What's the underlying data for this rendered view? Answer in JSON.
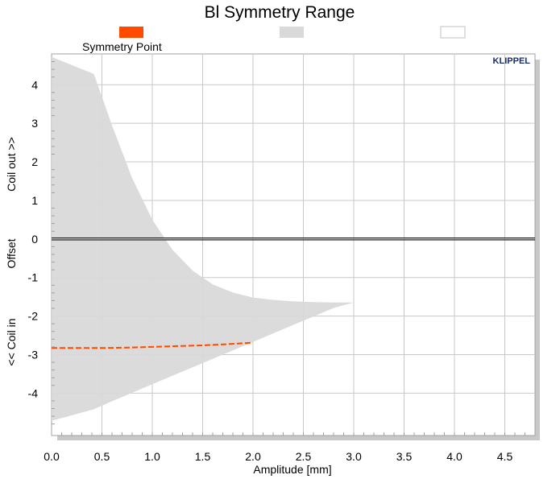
{
  "chart_data": {
    "type": "area",
    "title": "Bl Symmetry Range",
    "xlabel": "Amplitude [mm]",
    "ylabel_parts": [
      "Coil out >>",
      "Offset",
      "<< Coil in"
    ],
    "brand": "KLIPPEL",
    "xlim": [
      0,
      4.8
    ],
    "ylim": [
      -5.1,
      4.8
    ],
    "xticks": [
      0.0,
      0.5,
      1.0,
      1.5,
      2.0,
      2.5,
      3.0,
      3.5,
      4.0,
      4.5
    ],
    "xtick_labels": [
      "0.0",
      "0.5",
      "1.0",
      "1.5",
      "2.0",
      "2.5",
      "3.0",
      "3.5",
      "4.0",
      "4.5"
    ],
    "yticks": [
      4,
      3,
      2,
      1,
      0,
      -1,
      -2,
      -3,
      -4
    ],
    "ytick_labels": [
      "4",
      "3",
      "2",
      "1",
      "0",
      "-1",
      "-2",
      "-3",
      "-4"
    ],
    "grid": true,
    "legend": [
      {
        "label": "Symmetry Point",
        "color": "#ff4a00"
      },
      {
        "label": "",
        "color": "#d9d9d9"
      },
      {
        "label": "",
        "color": "#ffffff"
      }
    ],
    "series": [
      {
        "name": "Symmetry Point",
        "color": "#ff4a00",
        "x": [
          0.0,
          0.25,
          0.5,
          0.75,
          1.0,
          1.25,
          1.5,
          1.75,
          2.0
        ],
        "y": [
          -2.83,
          -2.83,
          -2.83,
          -2.82,
          -2.8,
          -2.78,
          -2.76,
          -2.73,
          -2.69
        ]
      }
    ],
    "range_area": {
      "color": "#d9d9d9",
      "x": [
        0.0,
        0.42,
        0.6,
        0.8,
        1.0,
        1.2,
        1.4,
        1.6,
        1.8,
        2.0,
        2.2,
        2.4,
        2.6,
        2.8,
        3.0
      ],
      "upper": [
        4.72,
        4.28,
        2.95,
        1.58,
        0.5,
        -0.28,
        -0.82,
        -1.18,
        -1.39,
        -1.52,
        -1.58,
        -1.62,
        -1.64,
        -1.65,
        -1.65
      ],
      "lower": [
        -4.72,
        -4.42,
        -4.21,
        -3.99,
        -3.77,
        -3.55,
        -3.33,
        -3.11,
        -2.89,
        -2.67,
        -2.45,
        -2.23,
        -2.01,
        -1.79,
        -1.65
      ]
    },
    "zero_line": {
      "y": 0
    }
  }
}
